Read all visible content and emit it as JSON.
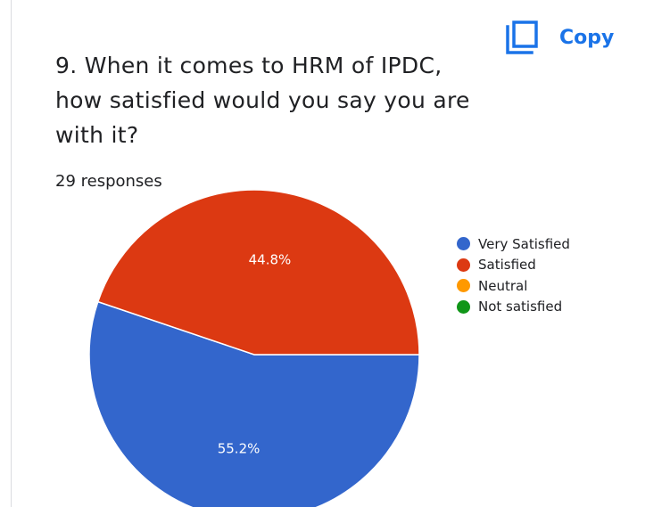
{
  "header": {
    "copy_label": "Copy",
    "copy_icon": "copy-icon",
    "accent_color": "#1a73e8"
  },
  "question": {
    "title": "9. When it comes to HRM of IPDC, how satisfied would you say you are with it?",
    "responses": "29 responses"
  },
  "chart_data": {
    "type": "pie",
    "title": "9. When it comes to HRM of IPDC, how satisfied would you say you are with it?",
    "categories": [
      "Very Satisfied",
      "Satisfied",
      "Neutral",
      "Not satisfied"
    ],
    "values": [
      55.2,
      44.8,
      0,
      0
    ],
    "value_labels": [
      "55.2%",
      "44.8%",
      "",
      ""
    ],
    "colors": [
      "#3366cc",
      "#dc3912",
      "#ff9900",
      "#109618"
    ],
    "legend_position": "right"
  }
}
